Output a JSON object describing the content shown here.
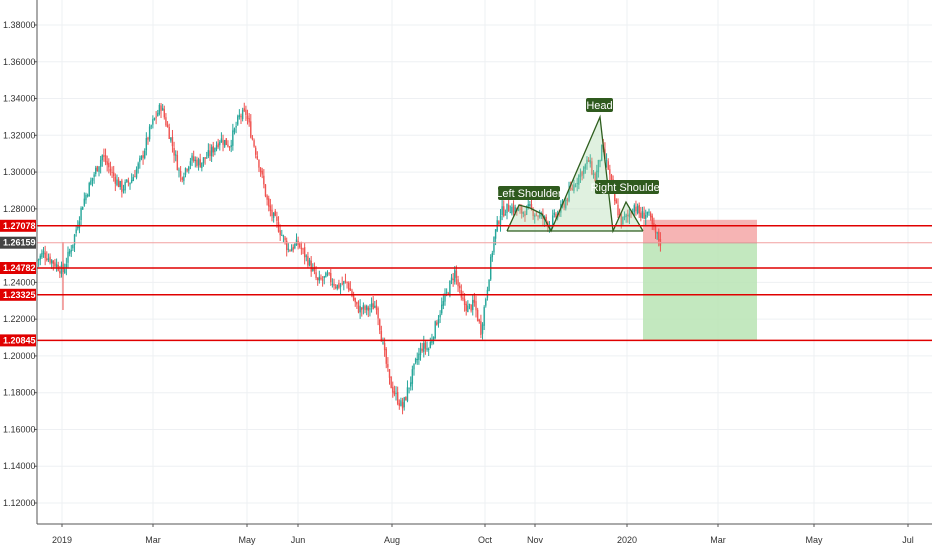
{
  "chart_data": {
    "type": "candlestick",
    "y_axis": {
      "ticks": [
        "1.38000",
        "1.36000",
        "1.34000",
        "1.32000",
        "1.30000",
        "1.28000",
        "1.24000",
        "1.22000",
        "1.20000",
        "1.18000",
        "1.16000",
        "1.14000",
        "1.12000"
      ],
      "range": [
        1.108,
        1.392
      ],
      "side": "left"
    },
    "x_axis": {
      "ticks": [
        "2019",
        "Mar",
        "May",
        "Jun",
        "Aug",
        "Oct",
        "Nov",
        "2020",
        "Mar",
        "May",
        "Jul"
      ]
    },
    "price_levels": [
      {
        "label": "1.27078",
        "value": 1.27078,
        "color": "#e00000"
      },
      {
        "label": "1.24782",
        "value": 1.24782,
        "color": "#e00000"
      },
      {
        "label": "1.23325",
        "value": 1.23325,
        "color": "#e00000"
      },
      {
        "label": "1.20845",
        "value": 1.20845,
        "color": "#e00000"
      }
    ],
    "current_price": {
      "label": "1.26159",
      "value": 1.26159,
      "color": "#444444"
    },
    "pattern": {
      "name": "head-and-shoulders",
      "labels": [
        "Left Shoulder",
        "Head",
        "Right Shoulder"
      ],
      "fill_color": "#a5d6a7",
      "line_color": "#2e5e1e"
    },
    "position": {
      "type": "short",
      "entry": 1.26159,
      "stop": 1.27078,
      "target": 1.20845,
      "stop_color": "#f4a7a7",
      "target_color": "#b9e4b4"
    },
    "up_color": "#26a69a",
    "down_color": "#ef5350",
    "grid": true,
    "path": [
      [
        0,
        1.252
      ],
      [
        4,
        1.256
      ],
      [
        10,
        1.251
      ],
      [
        16,
        1.246
      ],
      [
        22,
        1.262
      ],
      [
        28,
        1.283
      ],
      [
        34,
        1.297
      ],
      [
        40,
        1.309
      ],
      [
        46,
        1.299
      ],
      [
        52,
        1.291
      ],
      [
        58,
        1.296
      ],
      [
        64,
        1.307
      ],
      [
        70,
        1.325
      ],
      [
        76,
        1.336
      ],
      [
        82,
        1.318
      ],
      [
        88,
        1.297
      ],
      [
        94,
        1.307
      ],
      [
        100,
        1.305
      ],
      [
        106,
        1.31
      ],
      [
        112,
        1.318
      ],
      [
        118,
        1.315
      ],
      [
        124,
        1.33
      ],
      [
        128,
        1.332
      ],
      [
        132,
        1.318
      ],
      [
        136,
        1.305
      ],
      [
        142,
        1.28
      ],
      [
        148,
        1.27
      ],
      [
        154,
        1.258
      ],
      [
        160,
        1.261
      ],
      [
        166,
        1.252
      ],
      [
        172,
        1.24
      ],
      [
        178,
        1.243
      ],
      [
        184,
        1.238
      ],
      [
        190,
        1.24
      ],
      [
        196,
        1.226
      ],
      [
        202,
        1.225
      ],
      [
        208,
        1.228
      ],
      [
        212,
        1.205
      ],
      [
        216,
        1.186
      ],
      [
        220,
        1.178
      ],
      [
        224,
        1.172
      ],
      [
        228,
        1.184
      ],
      [
        232,
        1.196
      ],
      [
        236,
        1.205
      ],
      [
        240,
        1.204
      ],
      [
        246,
        1.222
      ],
      [
        252,
        1.236
      ],
      [
        256,
        1.246
      ],
      [
        260,
        1.23
      ],
      [
        264,
        1.226
      ],
      [
        268,
        1.228
      ],
      [
        270,
        1.221
      ],
      [
        272,
        1.214
      ],
      [
        276,
        1.238
      ],
      [
        280,
        1.264
      ],
      [
        284,
        1.278
      ],
      [
        290,
        1.281
      ],
      [
        296,
        1.278
      ],
      [
        302,
        1.28
      ],
      [
        308,
        1.276
      ],
      [
        314,
        1.272
      ],
      [
        320,
        1.278
      ],
      [
        326,
        1.288
      ],
      [
        332,
        1.298
      ],
      [
        338,
        1.306
      ],
      [
        342,
        1.296
      ],
      [
        346,
        1.312
      ],
      [
        350,
        1.302
      ],
      [
        354,
        1.284
      ],
      [
        358,
        1.273
      ],
      [
        362,
        1.276
      ],
      [
        366,
        1.282
      ],
      [
        370,
        1.276
      ],
      [
        374,
        1.278
      ],
      [
        378,
        1.268
      ],
      [
        382,
        1.262
      ]
    ]
  }
}
